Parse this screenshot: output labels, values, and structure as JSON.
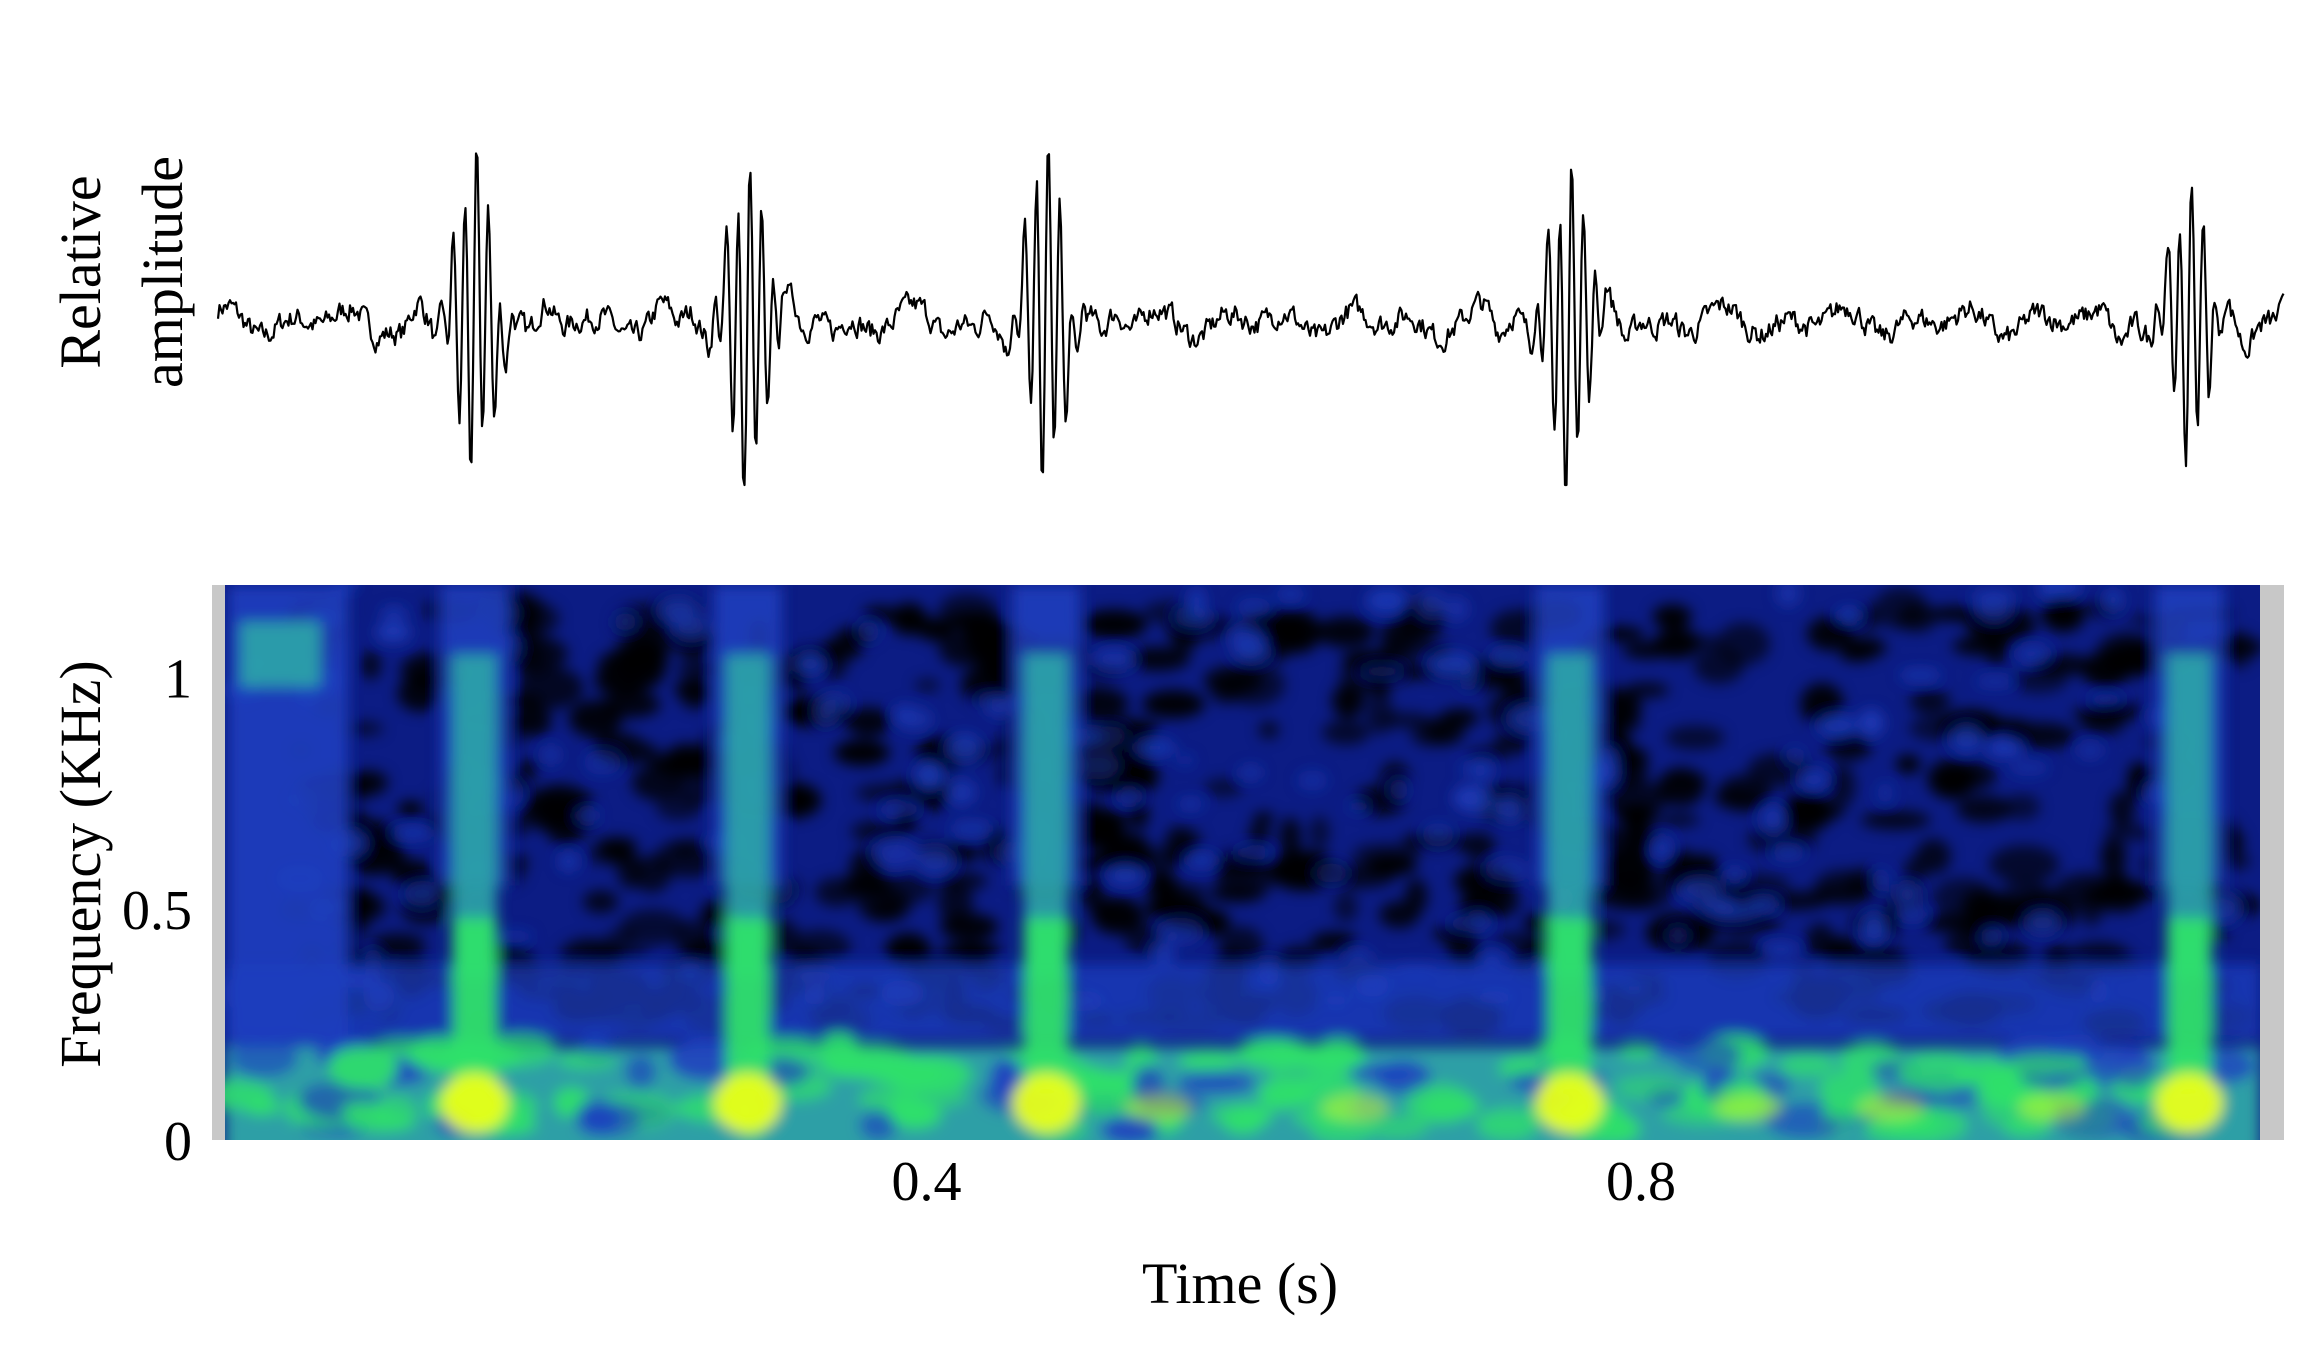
{
  "chart_data": [
    {
      "type": "line",
      "panel": "waveform",
      "ylabel_line1": "Relative",
      "ylabel_line2": "amplitude",
      "xlim": [
        0,
        1.16
      ],
      "pulses": [
        {
          "t": 0.147,
          "amp": 1.0
        },
        {
          "t": 0.3,
          "amp": 1.0
        },
        {
          "t": 0.467,
          "amp": 1.0
        },
        {
          "t": 0.76,
          "amp": 1.0
        },
        {
          "t": 1.107,
          "amp": 0.85
        }
      ]
    },
    {
      "type": "heatmap",
      "panel": "spectrogram",
      "xlabel": "Time (s)",
      "ylabel": "Frequency (KHz)",
      "xlim": [
        0,
        1.16
      ],
      "ylim": [
        0,
        1.2
      ],
      "xticks": [
        {
          "value": 0.4,
          "label": "0.4"
        },
        {
          "value": 0.8,
          "label": "0.8"
        }
      ],
      "yticks": [
        {
          "value": 0,
          "label": "0"
        },
        {
          "value": 0.5,
          "label": "0.5"
        },
        {
          "value": 1,
          "label": "1"
        }
      ],
      "colormap": [
        "#000000",
        "#0a1a80",
        "#1e3fbf",
        "#2fa6a8",
        "#2ee06a",
        "#e9ff1a"
      ],
      "pulse_times": [
        0.147,
        0.3,
        0.467,
        0.76,
        1.107
      ]
    }
  ]
}
